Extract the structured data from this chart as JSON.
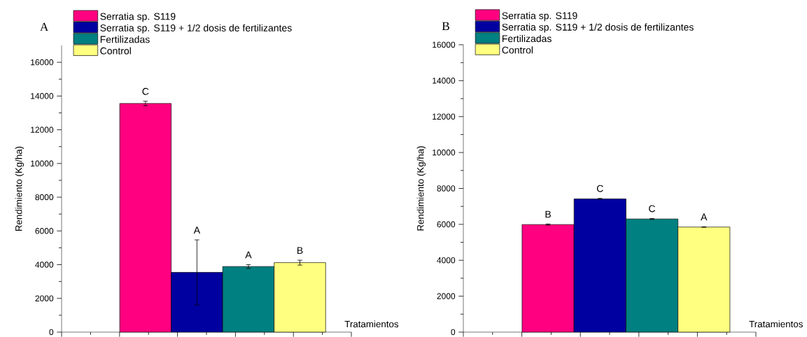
{
  "chart_data": [
    {
      "type": "bar",
      "title": "A",
      "xlabel": "Tratamientos",
      "ylabel": "Rendimiento (Kg/ha)",
      "categories": [
        null
      ],
      "series": [
        {
          "name": "Serratia sp. S119",
          "color": "#ff0080",
          "values": [
            13560
          ],
          "errors": [
            130
          ]
        },
        {
          "name": "Serratia sp. S119 + 1/2 dosis de fertilizantes",
          "color": "#0000a0",
          "values": [
            3540
          ],
          "errors": [
            1930
          ]
        },
        {
          "name": "Fertilizadas",
          "color": "#008080",
          "values": [
            3890
          ],
          "errors": [
            115
          ]
        },
        {
          "name": "Control",
          "color": "#ffff80",
          "values": [
            4120
          ],
          "errors": [
            145
          ]
        }
      ],
      "annotations": [
        "C",
        "A",
        "A",
        "B"
      ],
      "ylim": [
        0,
        17000
      ],
      "yticks": [
        0,
        2000,
        4000,
        6000,
        8000,
        10000,
        12000,
        14000,
        16000
      ],
      "legend": "top left",
      "tick_labels": "y"
    },
    {
      "type": "bar",
      "title": "B",
      "xlabel": "Tratamientos",
      "ylabel": "Rendimiento (Kg/ha)",
      "categories": [
        null
      ],
      "series": [
        {
          "name": "Serratia sp. S119",
          "color": "#ff0080",
          "values": [
            5990
          ],
          "errors": [
            30
          ]
        },
        {
          "name": "Serratia sp. S119 + 1/2 dosis de fertilizantes",
          "color": "#0000a0",
          "values": [
            7420
          ],
          "errors": [
            25
          ]
        },
        {
          "name": "Fertilizadas",
          "color": "#008080",
          "values": [
            6300
          ],
          "errors": [
            25
          ]
        },
        {
          "name": "Control",
          "color": "#ffff80",
          "values": [
            5850
          ],
          "errors": [
            15
          ]
        }
      ],
      "annotations": [
        "B",
        "C",
        "C",
        "A"
      ],
      "ylim": [
        0,
        16000
      ],
      "yticks": [
        0,
        2000,
        4000,
        6000,
        8000,
        10000,
        12000,
        14000,
        16000
      ],
      "legend": "top left",
      "tick_labels": "y"
    }
  ]
}
